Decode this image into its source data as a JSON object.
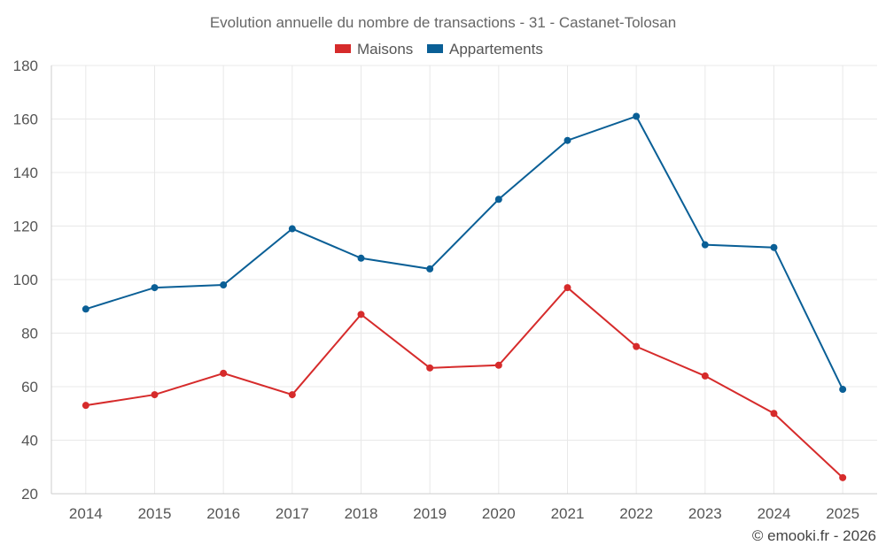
{
  "chart_data": {
    "type": "line",
    "title": "Evolution annuelle du nombre de transactions - 31 - Castanet-Tolosan",
    "xlabel": "",
    "ylabel": "",
    "categories": [
      "2014",
      "2015",
      "2016",
      "2017",
      "2018",
      "2019",
      "2020",
      "2021",
      "2022",
      "2023",
      "2024",
      "2025"
    ],
    "ylim": [
      20,
      180
    ],
    "yticks": [
      20,
      40,
      60,
      80,
      100,
      120,
      140,
      160,
      180
    ],
    "grid": true,
    "legend_position": "top-center",
    "series": [
      {
        "name": "Maisons",
        "color": "#d62b2b",
        "values": [
          53,
          57,
          65,
          57,
          87,
          67,
          68,
          97,
          75,
          64,
          50,
          26
        ]
      },
      {
        "name": "Appartements",
        "color": "#0a5f96",
        "values": [
          89,
          97,
          98,
          119,
          108,
          104,
          130,
          152,
          161,
          113,
          112,
          59
        ]
      }
    ]
  },
  "credit": "© emooki.fr - 2026"
}
